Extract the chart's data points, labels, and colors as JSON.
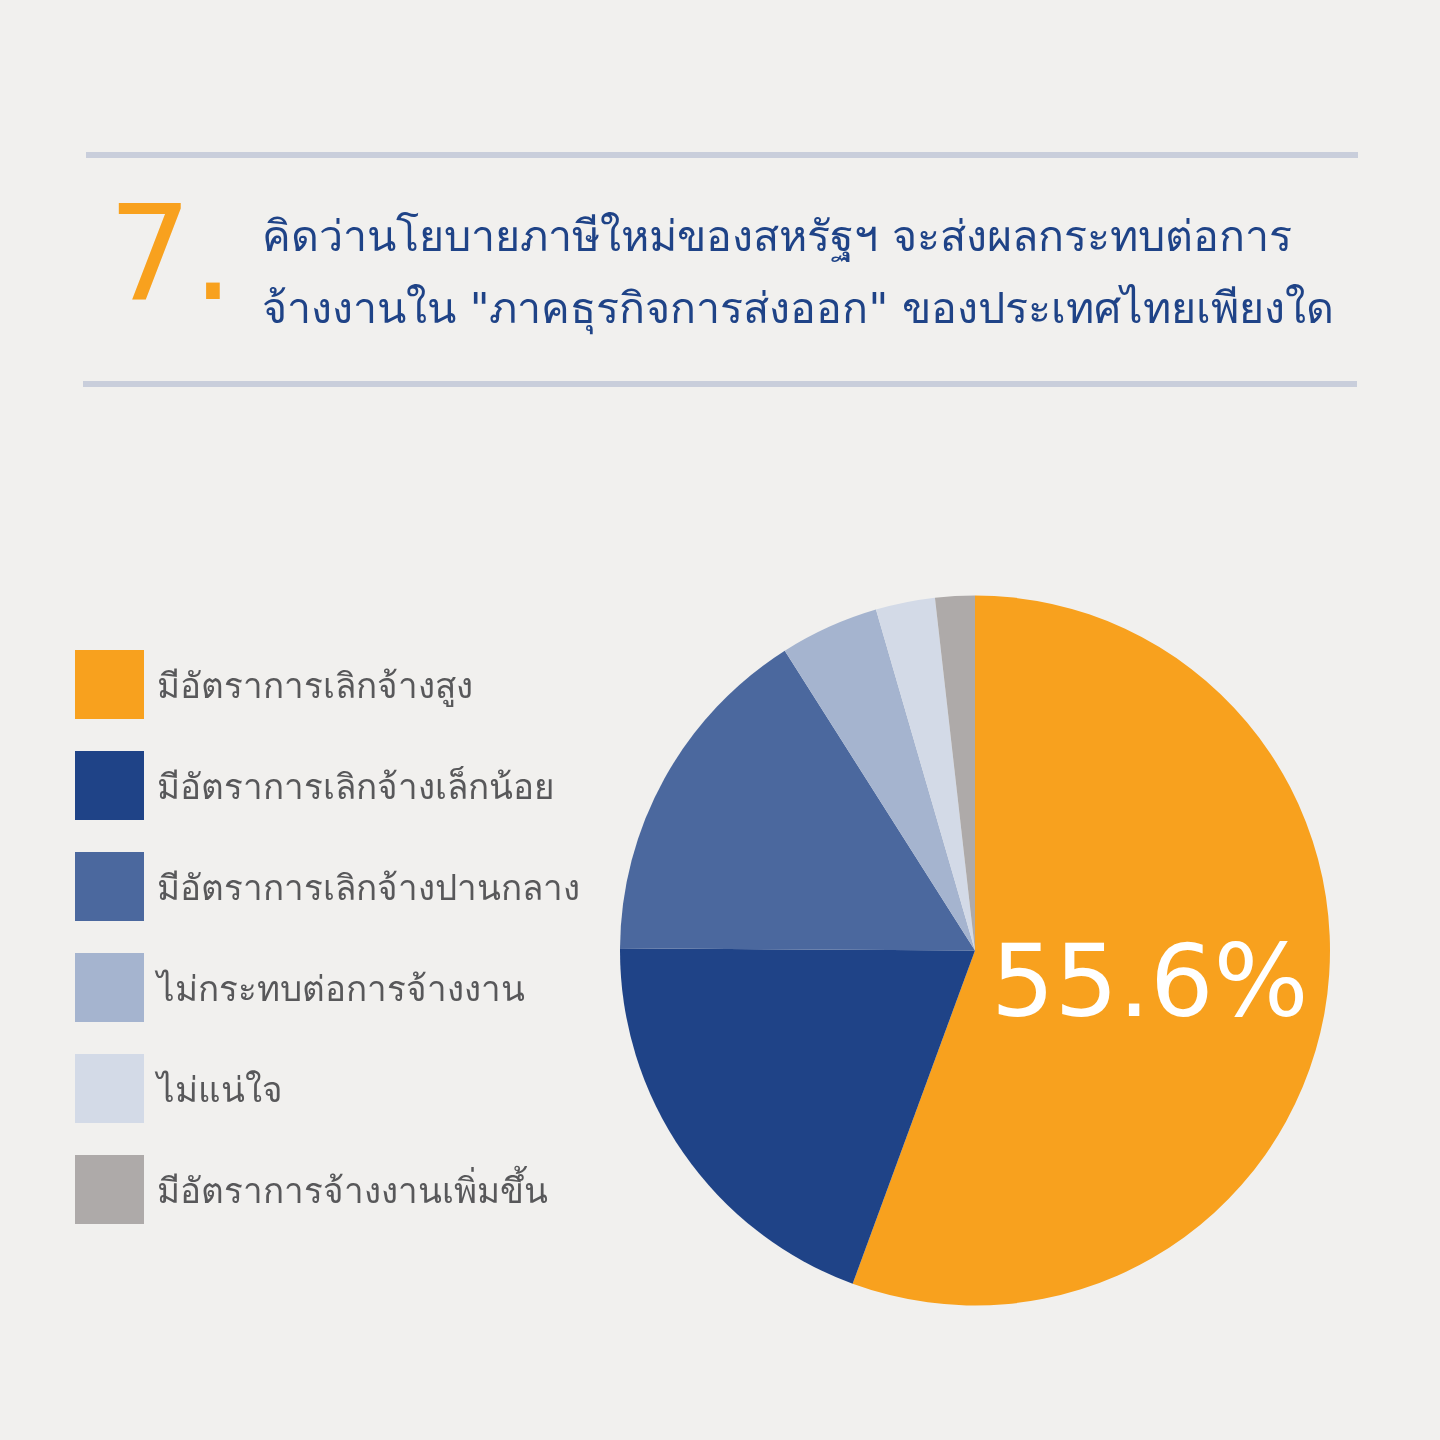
{
  "chart_data": {
    "type": "pie",
    "title": "คิดว่านโยบายภาษีใหม่ของสหรัฐฯ จะส่งผลกระทบต่อการจ้างงานใน \"ภาคธุรกิจการส่งออก\" ของประเทศไทยเพียงใด",
    "annotations": [
      "7."
    ],
    "categories": [
      "มีอัตราการเลิกจ้างสูง",
      "มีอัตราการเลิกจ้างเล็กน้อย",
      "มีอัตราการเลิกจ้างปานกลาง",
      "ไม่กระทบต่อการจ้างงาน",
      "ไม่แน่ใจ",
      "มีอัตราการจ้างงานเพิ่มขึ้น"
    ],
    "values": [
      55.6,
      19.5,
      15.9,
      4.5,
      2.7,
      1.8
    ],
    "colors": [
      "#f8a11e",
      "#1f4387",
      "#4b689e",
      "#a5b4cf",
      "#d3dae7",
      "#aeaaa9"
    ],
    "value_labels": [
      "55.6%",
      null,
      null,
      null,
      null,
      null
    ],
    "legend": "left"
  }
}
